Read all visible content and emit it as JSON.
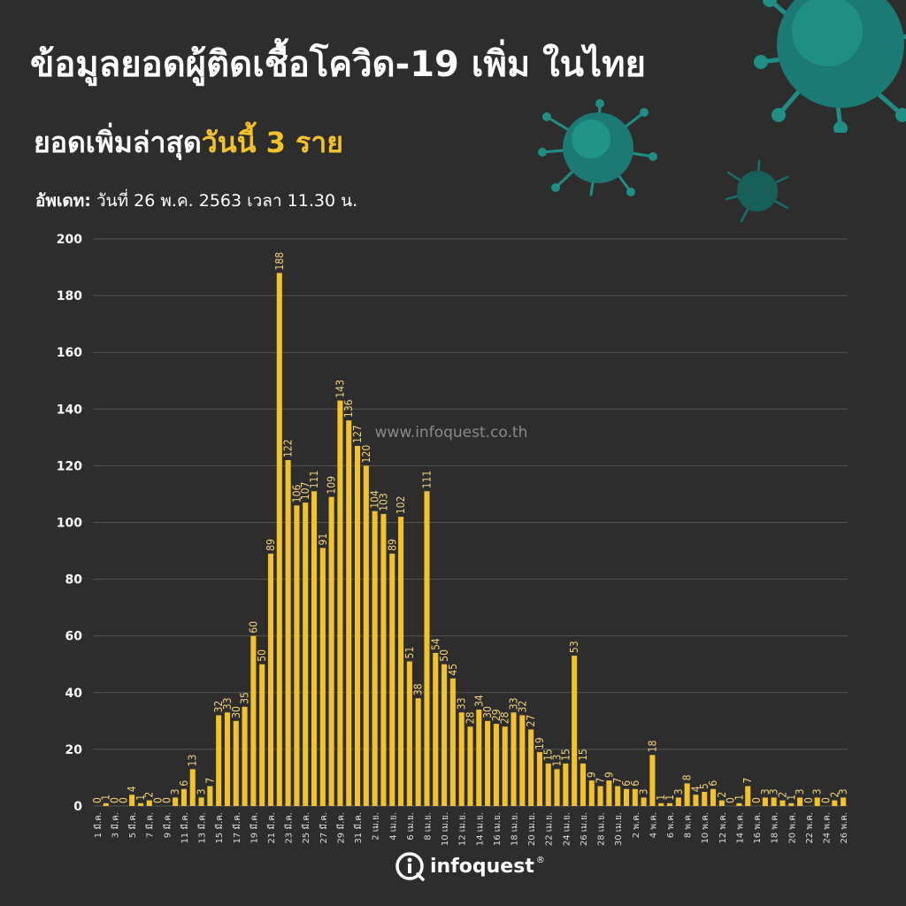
{
  "header": {
    "title": "ข้อมูลยอดผู้ติดเชื้อโควิด-19 เพิ่ม ในไทย",
    "subtitle_prefix": "ยอดเพิ่มล่าสุด",
    "subtitle_highlight": "วันนี้ 3 ราย",
    "updated_label": "อัพเดท:",
    "updated_text": "วันที่  26 พ.ค. 2563 เวลา 11.30 น."
  },
  "watermark": "www.infoquest.co.th",
  "logo": {
    "text": "infoquest",
    "mark": "®"
  },
  "colors": {
    "background": "#2d2d2d",
    "bar": "#f2c22a",
    "grid": "#555555",
    "highlight": "#f2c22a",
    "virus": "#1f8f86"
  },
  "chart_data": {
    "type": "bar",
    "ylim": [
      0,
      200
    ],
    "yticks": [
      0,
      20,
      40,
      60,
      80,
      100,
      120,
      140,
      160,
      180,
      200
    ],
    "grid": true,
    "categories": [
      "1 มี.ค.",
      "2 มี.ค.",
      "3 มี.ค.",
      "4 มี.ค.",
      "5 มี.ค.",
      "6 มี.ค.",
      "7 มี.ค.",
      "8 มี.ค.",
      "9 มี.ค.",
      "10 มี.ค.",
      "11 มี.ค.",
      "12 มี.ค.",
      "13 มี.ค.",
      "14 มี.ค.",
      "15 มี.ค.",
      "16 มี.ค.",
      "17 มี.ค.",
      "18 มี.ค.",
      "19 มี.ค.",
      "20 มี.ค.",
      "21 มี.ค.",
      "22 มี.ค.",
      "23 มี.ค.",
      "24 มี.ค.",
      "25 มี.ค.",
      "26 มี.ค.",
      "27 มี.ค.",
      "28 มี.ค.",
      "29 มี.ค.",
      "30 มี.ค.",
      "31 มี.ค.",
      "1 เม.ย.",
      "2 เม.ย.",
      "3 เม.ย.",
      "4 เม.ย.",
      "5 เม.ย.",
      "6 เม.ย.",
      "7 เม.ย.",
      "8 เม.ย.",
      "9 เม.ย.",
      "10 เม.ย.",
      "11 เม.ย.",
      "12 เม.ย.",
      "13 เม.ย.",
      "14 เม.ย.",
      "15 เม.ย.",
      "16 เม.ย.",
      "17 เม.ย.",
      "18 เม.ย.",
      "19 เม.ย.",
      "20 เม.ย.",
      "21 เม.ย.",
      "22 เม.ย.",
      "23 เม.ย.",
      "24 เม.ย.",
      "25 เม.ย.",
      "26 เม.ย.",
      "27 เม.ย.",
      "28 เม.ย.",
      "29 เม.ย.",
      "30 เม.ย.",
      "1 พ.ค.",
      "2 พ.ค.",
      "3 พ.ค.",
      "4 พ.ค.",
      "5 พ.ค.",
      "6 พ.ค.",
      "7 พ.ค.",
      "8 พ.ค.",
      "9 พ.ค.",
      "10 พ.ค.",
      "11 พ.ค.",
      "12 พ.ค.",
      "13 พ.ค.",
      "14 พ.ค.",
      "15 พ.ค.",
      "16 พ.ค.",
      "17 พ.ค.",
      "18 พ.ค.",
      "19 พ.ค.",
      "20 พ.ค.",
      "21 พ.ค.",
      "22 พ.ค.",
      "23 พ.ค.",
      "24 พ.ค.",
      "25 พ.ค.",
      "26 พ.ค."
    ],
    "xtick_labels": [
      "1 มี.ค.",
      "3 มี.ค.",
      "5 มี.ค.",
      "7 มี.ค.",
      "9 มี.ค.",
      "11 มี.ค.",
      "13 มี.ค.",
      "15 มี.ค.",
      "17 มี.ค.",
      "19 มี.ค.",
      "21 มี.ค.",
      "23 มี.ค.",
      "25 มี.ค.",
      "27 มี.ค.",
      "29 มี.ค.",
      "31 มี.ค.",
      "2 เม.ย.",
      "4 เม.ย.",
      "6 เม.ย.",
      "8 เม.ย.",
      "10 เม.ย.",
      "12 เม.ย.",
      "14 เม.ย.",
      "16 เม.ย.",
      "18 เม.ย.",
      "20 เม.ย.",
      "22 เม.ย.",
      "24 เม.ย.",
      "26 เม.ย.",
      "28 เม.ย.",
      "30 เม.ย.",
      "2 พ.ค.",
      "4 พ.ค.",
      "6 พ.ค.",
      "8 พ.ค.",
      "10 พ.ค.",
      "12 พ.ค.",
      "14 พ.ค.",
      "16 พ.ค.",
      "18 พ.ค.",
      "20 พ.ค.",
      "22 พ.ค.",
      "24 พ.ค.",
      "26 พ.ค."
    ],
    "values": [
      0,
      1,
      0,
      0,
      4,
      1,
      2,
      0,
      0,
      3,
      6,
      13,
      3,
      7,
      32,
      33,
      30,
      35,
      60,
      50,
      89,
      188,
      122,
      106,
      107,
      111,
      91,
      109,
      143,
      136,
      127,
      120,
      104,
      103,
      89,
      102,
      51,
      38,
      111,
      54,
      50,
      45,
      33,
      28,
      34,
      30,
      29,
      28,
      33,
      32,
      27,
      19,
      15,
      13,
      15,
      53,
      15,
      9,
      7,
      9,
      7,
      6,
      6,
      3,
      18,
      1,
      1,
      3,
      8,
      4,
      5,
      6,
      2,
      0,
      1,
      7,
      0,
      3,
      3,
      2,
      1,
      3,
      0,
      3,
      0,
      2,
      3
    ]
  }
}
